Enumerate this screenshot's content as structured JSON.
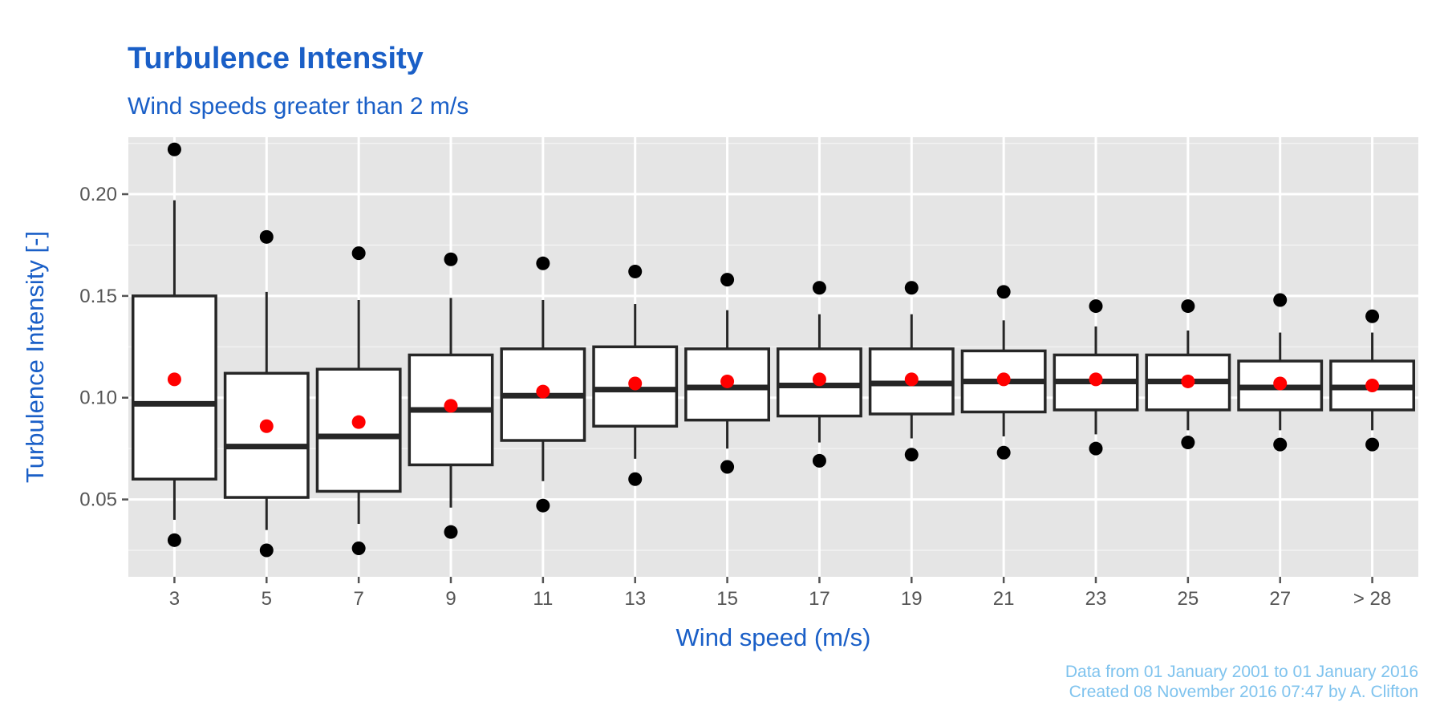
{
  "chart_data": {
    "type": "boxplot",
    "title": "Turbulence Intensity",
    "subtitle": "Wind speeds greater than 2 m/s",
    "xlabel": "Wind speed (m/s)",
    "ylabel": "Turbulence Intensity [-]",
    "ylim": [
      0.012,
      0.228
    ],
    "y_ticks": [
      0.05,
      0.1,
      0.15,
      0.2
    ],
    "y_tick_labels": [
      "0.05",
      "0.10",
      "0.15",
      "0.20"
    ],
    "grid": true,
    "categories": [
      "3",
      "5",
      "7",
      "9",
      "11",
      "13",
      "15",
      "17",
      "19",
      "21",
      "23",
      "25",
      "27",
      "> 28"
    ],
    "boxes": [
      {
        "category": "3",
        "q1": 0.06,
        "median": 0.097,
        "q3": 0.15,
        "whisker_low": 0.04,
        "whisker_high": 0.197,
        "outlier_low": 0.03,
        "outlier_high": 0.222,
        "mean": 0.109
      },
      {
        "category": "5",
        "q1": 0.051,
        "median": 0.076,
        "q3": 0.112,
        "whisker_low": 0.035,
        "whisker_high": 0.152,
        "outlier_low": 0.025,
        "outlier_high": 0.179,
        "mean": 0.086
      },
      {
        "category": "7",
        "q1": 0.054,
        "median": 0.081,
        "q3": 0.114,
        "whisker_low": 0.038,
        "whisker_high": 0.148,
        "outlier_low": 0.026,
        "outlier_high": 0.171,
        "mean": 0.088
      },
      {
        "category": "9",
        "q1": 0.067,
        "median": 0.094,
        "q3": 0.121,
        "whisker_low": 0.046,
        "whisker_high": 0.149,
        "outlier_low": 0.034,
        "outlier_high": 0.168,
        "mean": 0.096
      },
      {
        "category": "11",
        "q1": 0.079,
        "median": 0.101,
        "q3": 0.124,
        "whisker_low": 0.059,
        "whisker_high": 0.148,
        "outlier_low": 0.047,
        "outlier_high": 0.166,
        "mean": 0.103
      },
      {
        "category": "13",
        "q1": 0.086,
        "median": 0.104,
        "q3": 0.125,
        "whisker_low": 0.07,
        "whisker_high": 0.146,
        "outlier_low": 0.06,
        "outlier_high": 0.162,
        "mean": 0.107
      },
      {
        "category": "15",
        "q1": 0.089,
        "median": 0.105,
        "q3": 0.124,
        "whisker_low": 0.075,
        "whisker_high": 0.143,
        "outlier_low": 0.066,
        "outlier_high": 0.158,
        "mean": 0.108
      },
      {
        "category": "17",
        "q1": 0.091,
        "median": 0.106,
        "q3": 0.124,
        "whisker_low": 0.078,
        "whisker_high": 0.141,
        "outlier_low": 0.069,
        "outlier_high": 0.154,
        "mean": 0.109
      },
      {
        "category": "19",
        "q1": 0.092,
        "median": 0.107,
        "q3": 0.124,
        "whisker_low": 0.08,
        "whisker_high": 0.141,
        "outlier_low": 0.072,
        "outlier_high": 0.154,
        "mean": 0.109
      },
      {
        "category": "21",
        "q1": 0.093,
        "median": 0.108,
        "q3": 0.123,
        "whisker_low": 0.081,
        "whisker_high": 0.138,
        "outlier_low": 0.073,
        "outlier_high": 0.152,
        "mean": 0.109
      },
      {
        "category": "23",
        "q1": 0.094,
        "median": 0.108,
        "q3": 0.121,
        "whisker_low": 0.082,
        "whisker_high": 0.135,
        "outlier_low": 0.075,
        "outlier_high": 0.145,
        "mean": 0.109
      },
      {
        "category": "25",
        "q1": 0.094,
        "median": 0.108,
        "q3": 0.121,
        "whisker_low": 0.084,
        "whisker_high": 0.133,
        "outlier_low": 0.078,
        "outlier_high": 0.145,
        "mean": 0.108
      },
      {
        "category": "27",
        "q1": 0.094,
        "median": 0.105,
        "q3": 0.118,
        "whisker_low": 0.084,
        "whisker_high": 0.132,
        "outlier_low": 0.077,
        "outlier_high": 0.148,
        "mean": 0.107
      },
      {
        "category": "> 28",
        "q1": 0.094,
        "median": 0.105,
        "q3": 0.118,
        "whisker_low": 0.084,
        "whisker_high": 0.132,
        "outlier_low": 0.077,
        "outlier_high": 0.14,
        "mean": 0.106
      }
    ],
    "colors": {
      "panel_background": "#e5e5e5",
      "grid": "#ffffff",
      "box_fill": "#ffffff",
      "box_stroke": "#262626",
      "outlier": "#000000",
      "mean": "#ff0000",
      "title": "#1a5fc7",
      "caption": "#7fc3ee",
      "tick_text": "#555555"
    }
  },
  "caption": {
    "line1": "Data from 01 January 2001 to 01 January 2016",
    "line2": "Created 08 November 2016 07:47 by A. Clifton"
  }
}
